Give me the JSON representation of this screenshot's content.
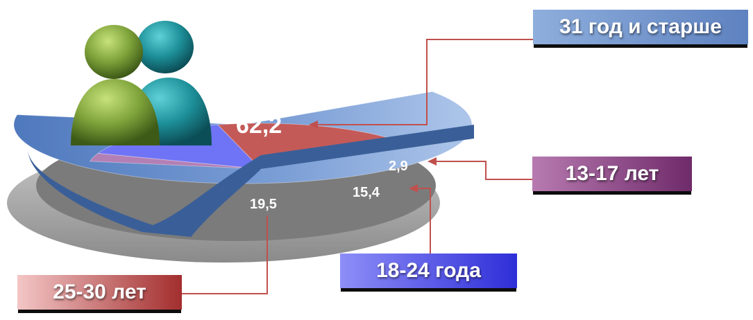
{
  "chart_data": {
    "type": "pie",
    "title": "",
    "slices": [
      {
        "label": "31 год и старше",
        "value": 62.2,
        "value_text": "62,2",
        "color": "#6a8fcd"
      },
      {
        "label": "13-17 лет",
        "value": 2.9,
        "value_text": "2,9",
        "color": "#b380b5"
      },
      {
        "label": "18-24 года",
        "value": 15.4,
        "value_text": "15,4",
        "color": "#6f73f5"
      },
      {
        "label": "25-30 лет",
        "value": 19.5,
        "value_text": "19,5",
        "color": "#c45a58"
      }
    ],
    "legend": "callout boxes with leader lines",
    "decoration": "two-person-users-icon"
  }
}
